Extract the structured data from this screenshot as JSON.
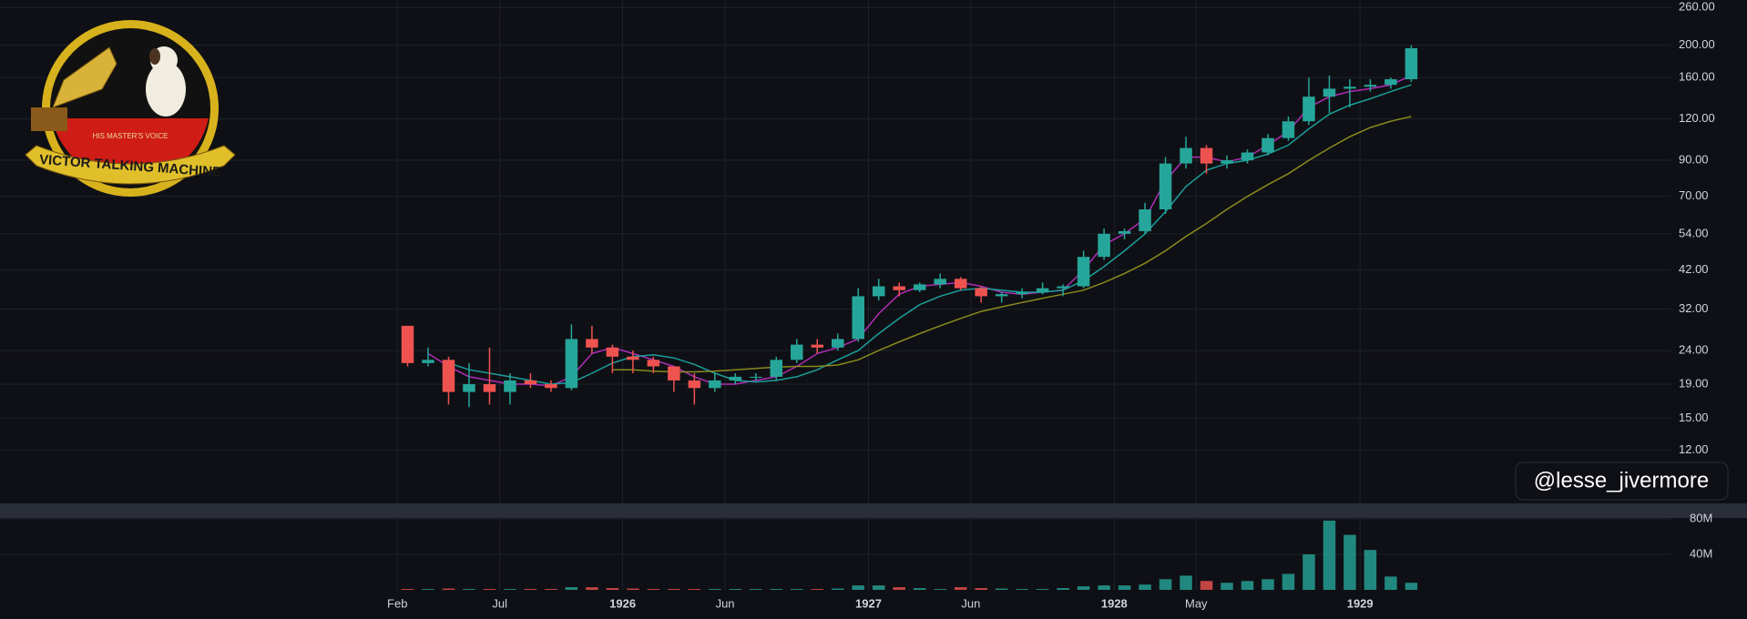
{
  "logo": {
    "top_text": "HIS MASTER'S VOICE",
    "banner": "VICTOR TALKING MACHINE"
  },
  "watermark": "@lesse_jivermore",
  "chart_data": {
    "type": "candlestick",
    "log_y": true,
    "grid": true,
    "up_color": "#26a69a",
    "down_color": "#ef5350",
    "xlim": [
      -18.4,
      63.2
    ],
    "xticks": [
      {
        "value": 1,
        "label": "Feb"
      },
      {
        "value": 6,
        "label": "Jul"
      },
      {
        "value": 12,
        "label": "1926"
      },
      {
        "value": 17,
        "label": "Jun"
      },
      {
        "value": 24,
        "label": "1927"
      },
      {
        "value": 29,
        "label": "Jun"
      },
      {
        "value": 36,
        "label": "1928"
      },
      {
        "value": 40,
        "label": "May"
      },
      {
        "value": 48,
        "label": "1929"
      }
    ],
    "ylim": [
      8.3,
      274
    ],
    "yticks": [
      {
        "value": 12,
        "label": "12.00"
      },
      {
        "value": 15,
        "label": "15.00"
      },
      {
        "value": 19,
        "label": "19.00"
      },
      {
        "value": 24,
        "label": "24.00"
      },
      {
        "value": 32,
        "label": "32.00"
      },
      {
        "value": 42,
        "label": "42.00"
      },
      {
        "value": 54,
        "label": "54.00"
      },
      {
        "value": 70,
        "label": "70.00"
      },
      {
        "value": 90,
        "label": "90.00"
      },
      {
        "value": 120,
        "label": "120.00"
      },
      {
        "value": 160,
        "label": "160.00"
      },
      {
        "value": 200,
        "label": "200.00"
      },
      {
        "value": 260,
        "label": "260.00"
      }
    ],
    "x": [
      1.5,
      2.5,
      3.5,
      4.5,
      5.5,
      6.5,
      7.5,
      8.5,
      9.5,
      10.5,
      11.5,
      12.5,
      13.5,
      14.5,
      15.5,
      16.5,
      17.5,
      18.5,
      19.5,
      20.5,
      21.5,
      22.5,
      23.5,
      24.5,
      25.5,
      26.5,
      27.5,
      28.5,
      29.5,
      30.5,
      31.5,
      32.5,
      33.5,
      34.5,
      35.5,
      36.5,
      37.5,
      38.5,
      39.5,
      40.5,
      41.5,
      42.5,
      43.5,
      44.5,
      45.5,
      46.5,
      47.5,
      48.5,
      49.5,
      50.5
    ],
    "open": [
      28.5,
      22,
      22.5,
      18,
      19,
      18,
      19.5,
      19,
      18.5,
      26,
      24.5,
      23,
      22.5,
      21.5,
      19.5,
      18.5,
      19.5,
      20,
      20,
      22.5,
      25,
      24.5,
      26,
      35,
      37.5,
      36.5,
      38,
      39.5,
      37,
      35,
      35.5,
      36,
      37,
      37.5,
      46,
      54,
      55,
      64,
      88,
      98,
      88,
      90,
      95,
      105,
      118,
      140,
      148,
      150,
      152,
      158
    ],
    "high": [
      28.5,
      24.5,
      23,
      22,
      24.5,
      20.5,
      20.5,
      19.5,
      28.8,
      28.5,
      25,
      24,
      23,
      21.5,
      20.5,
      20.5,
      20.5,
      20.5,
      23,
      26,
      26,
      27,
      37,
      39.5,
      38.5,
      38.5,
      41,
      40,
      37.5,
      36,
      37,
      38.5,
      38,
      48,
      56,
      56,
      67,
      92,
      106,
      100,
      93,
      97,
      108,
      122,
      160,
      162,
      158,
      158,
      160,
      200
    ],
    "low": [
      21.5,
      21.5,
      16.5,
      16.2,
      16.5,
      16.5,
      18.5,
      18,
      18.2,
      23.5,
      20.5,
      20.5,
      20.5,
      18,
      16.5,
      18,
      19,
      19.5,
      19.5,
      22,
      23.5,
      24,
      25.5,
      34,
      35,
      36,
      37,
      36.5,
      33.5,
      33.5,
      34.5,
      35.5,
      35,
      37,
      45,
      52,
      54,
      62,
      85,
      82,
      85,
      88,
      93,
      103,
      115,
      125,
      130,
      145,
      148,
      155
    ],
    "close": [
      22,
      22.5,
      18,
      19,
      18,
      19.5,
      19,
      18.5,
      26,
      24.5,
      23,
      22.5,
      21.5,
      19.5,
      18.5,
      19.5,
      20,
      20,
      22.5,
      25,
      24.5,
      26,
      35,
      37.5,
      36.5,
      38,
      39.5,
      37,
      35,
      35.5,
      36,
      37,
      37.5,
      46,
      54,
      55,
      64,
      88,
      98,
      88,
      90,
      95,
      105,
      118,
      140,
      148,
      150,
      152,
      158,
      196
    ],
    "moving_averages": [
      {
        "color": "#b02cb5",
        "values": [
          null,
          23.5,
          21.5,
          20,
          19.5,
          19,
          19,
          18.8,
          20,
          23.5,
          24.5,
          23.5,
          22.5,
          21.5,
          20,
          19,
          19,
          19.5,
          20,
          21.5,
          23.5,
          24.5,
          26,
          31,
          35.5,
          37.5,
          38,
          38.5,
          37.5,
          36,
          35.5,
          36,
          36.5,
          42,
          50,
          54,
          60,
          78,
          92,
          92,
          89,
          92,
          100,
          110,
          130,
          140,
          145,
          148,
          152,
          162
        ]
      },
      {
        "color": "#1b9e9a",
        "values": [
          null,
          null,
          22,
          21,
          20.5,
          20,
          19.5,
          19,
          19.2,
          20.5,
          22,
          23,
          23.3,
          22.8,
          21.8,
          20.5,
          19.5,
          19.3,
          19.5,
          20,
          21,
          22.5,
          24,
          27,
          30,
          33,
          35,
          36.5,
          37,
          36.5,
          36,
          36,
          36.5,
          39,
          43,
          48,
          54,
          63,
          75,
          84,
          88,
          90,
          94,
          100,
          112,
          124,
          132,
          138,
          145,
          152
        ]
      },
      {
        "color": "#8a8a1e",
        "values": [
          null,
          null,
          null,
          null,
          null,
          null,
          null,
          null,
          null,
          null,
          21,
          21,
          20.8,
          20.7,
          20.7,
          20.8,
          21,
          21.2,
          21.4,
          21.5,
          21.5,
          21.7,
          22.5,
          24,
          25.5,
          27,
          28.5,
          30,
          31.5,
          32.5,
          33.5,
          34.5,
          35.5,
          36.5,
          38.5,
          41,
          44,
          48,
          53,
          58,
          64,
          70,
          76,
          82,
          90,
          98,
          106,
          113,
          118,
          122
        ]
      }
    ],
    "volume": {
      "ylim": [
        0,
        81000000
      ],
      "yticks": [
        {
          "value": 40000000,
          "label": "40M"
        },
        {
          "value": 80000000,
          "label": "80M"
        }
      ],
      "values": [
        1000000,
        1000000,
        1500000,
        1000000,
        1000000,
        1000000,
        1000000,
        1000000,
        3000000,
        3000000,
        2000000,
        1500000,
        1000000,
        1000000,
        1000000,
        1000000,
        1000000,
        1000000,
        1000000,
        1000000,
        1000000,
        1500000,
        5000000,
        5000000,
        3000000,
        2000000,
        1000000,
        3000000,
        2000000,
        1500000,
        1000000,
        1000000,
        2000000,
        4000000,
        5000000,
        5000000,
        6000000,
        12000000,
        16000000,
        10000000,
        8000000,
        10000000,
        12000000,
        18000000,
        40000000,
        78000000,
        62000000,
        45000000,
        15000000,
        8000000
      ]
    }
  }
}
